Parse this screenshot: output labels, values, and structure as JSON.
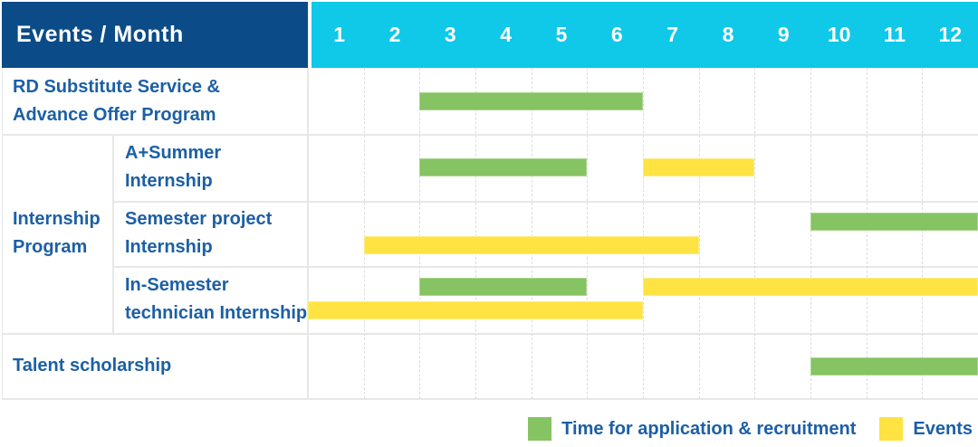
{
  "header": {
    "title": "Events / Month",
    "months": [
      "1",
      "2",
      "3",
      "4",
      "5",
      "6",
      "7",
      "8",
      "9",
      "10",
      "11",
      "12"
    ]
  },
  "labels": {
    "rd": "RD Substitute Service &\nAdvance Offer Program",
    "group": "Internship\nProgram",
    "a_summer": "A+Summer\nInternship",
    "semester_project": "Semester project\nInternship",
    "in_semester": "In-Semester\ntechnician Internship",
    "talent": "Talent scholarship"
  },
  "legend": {
    "items": [
      {
        "label": "Time for application & recruitment",
        "series": "application"
      },
      {
        "label": "Events",
        "series": "events"
      }
    ]
  },
  "colors": {
    "navy": "#0B4B87",
    "cyan": "#10C8E8",
    "green": "#85C363",
    "yellow": "#FEE342",
    "blue": "#1C5FA6"
  },
  "chart_data": {
    "type": "bar",
    "subtype": "gantt",
    "title": "Events / Month",
    "x_axis": {
      "label": "Month",
      "ticks": [
        1,
        2,
        3,
        4,
        5,
        6,
        7,
        8,
        9,
        10,
        11,
        12
      ],
      "range": [
        1,
        12
      ]
    },
    "grid": "vertical-dashed",
    "legend_position": "bottom-right",
    "series_legend": [
      {
        "series": "application",
        "name": "Time for application & recruitment",
        "color": "#85C363"
      },
      {
        "series": "events",
        "name": "Events",
        "color": "#FEE342"
      }
    ],
    "rows": [
      {
        "group": null,
        "label": "RD Substitute Service & Advance Offer Program",
        "spans": [
          {
            "series": "application",
            "start_month": 3,
            "end_month": 6,
            "lane": "center"
          }
        ]
      },
      {
        "group": "Internship Program",
        "label": "A+Summer Internship",
        "spans": [
          {
            "series": "application",
            "start_month": 3,
            "end_month": 5,
            "lane": "center"
          },
          {
            "series": "events",
            "start_month": 7,
            "end_month": 8,
            "lane": "center"
          }
        ]
      },
      {
        "group": "Internship Program",
        "label": "Semester project Internship",
        "spans": [
          {
            "series": "application",
            "start_month": 10,
            "end_month": 12,
            "lane": "upper"
          },
          {
            "series": "events",
            "start_month": 2,
            "end_month": 7,
            "lane": "lower"
          }
        ]
      },
      {
        "group": "Internship Program",
        "label": "In-Semester technician Internship",
        "spans": [
          {
            "series": "application",
            "start_month": 3,
            "end_month": 5,
            "lane": "upper"
          },
          {
            "series": "events",
            "start_month": 7,
            "end_month": 12,
            "lane": "upper"
          },
          {
            "series": "events",
            "start_month": 1,
            "end_month": 6,
            "lane": "lower"
          }
        ]
      },
      {
        "group": null,
        "label": "Talent scholarship",
        "spans": [
          {
            "series": "application",
            "start_month": 10,
            "end_month": 12,
            "lane": "center"
          }
        ]
      }
    ]
  }
}
